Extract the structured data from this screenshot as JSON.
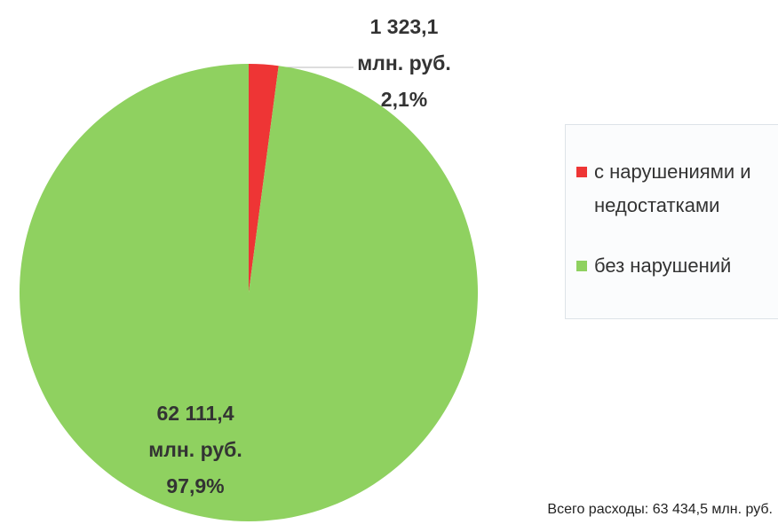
{
  "chart_data": {
    "type": "pie",
    "categories": [
      "с нарушениями и недостатками",
      "без нарушений"
    ],
    "values": [
      1323.1,
      62111.4
    ],
    "value_labels": [
      [
        "1 323,1",
        "млн. руб.",
        "2,1%"
      ],
      [
        "62 111,4",
        "млн. руб.",
        "97,9%"
      ]
    ],
    "colors": [
      "#ee3535",
      "#8fd160"
    ],
    "legend": "right",
    "note": "Всего расходы: 63 434,5 млн. руб."
  }
}
